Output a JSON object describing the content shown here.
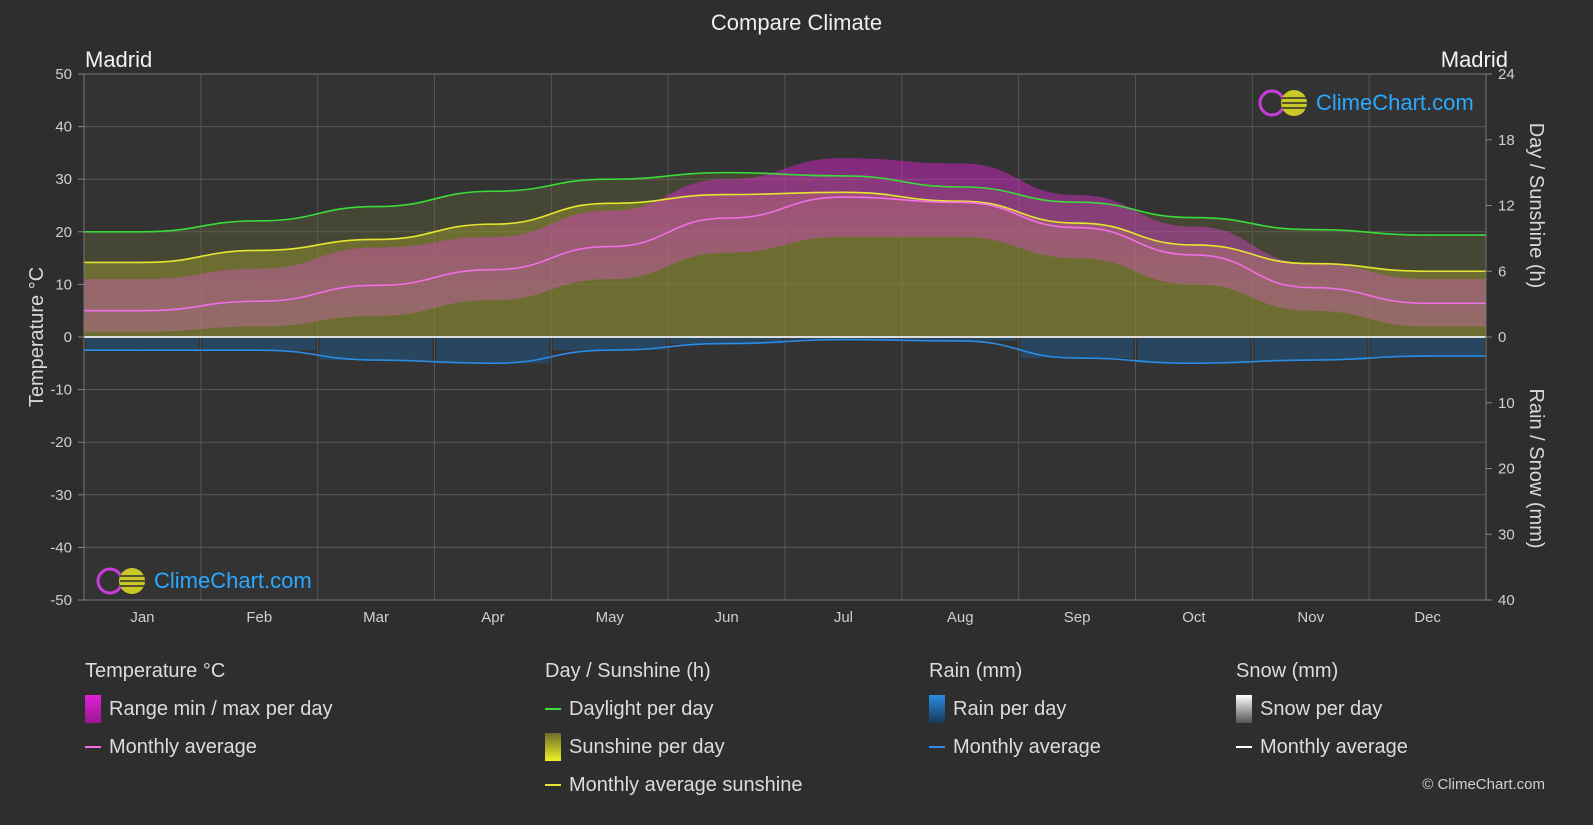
{
  "title": "Compare Climate",
  "location_left": "Madrid",
  "location_right": "Madrid",
  "brand": "ClimeChart.com",
  "copyright": "© ClimeChart.com",
  "colors": {
    "background": "#2e2e2e",
    "daylight": "#3adc3a",
    "sunshine_avg": "#e6e632",
    "temp_avg": "#f06ee6",
    "rain_avg": "#2a8ce6",
    "temp_range": "#d21ec8",
    "sunshine_fill": "#a0a028",
    "rain_fill": "#1e5a8c"
  },
  "axes": {
    "left_title": "Temperature °C",
    "right_top_title": "Day / Sunshine (h)",
    "right_bottom_title": "Rain / Snow (mm)",
    "left_ticks": [
      "50",
      "40",
      "30",
      "20",
      "10",
      "0",
      "-10",
      "-20",
      "-30",
      "-40",
      "-50"
    ],
    "right_top_ticks": [
      "24",
      "18",
      "12",
      "6",
      "0"
    ],
    "right_bottom_ticks": [
      "10",
      "20",
      "30",
      "40"
    ]
  },
  "legend": {
    "temperature": {
      "header": "Temperature °C",
      "range": "Range min / max per day",
      "avg": "Monthly average"
    },
    "sunshine": {
      "header": "Day / Sunshine (h)",
      "daylight": "Daylight per day",
      "sunshine": "Sunshine per day",
      "avg": "Monthly average sunshine"
    },
    "rain": {
      "header": "Rain (mm)",
      "per_day": "Rain per day",
      "avg": "Monthly average"
    },
    "snow": {
      "header": "Snow (mm)",
      "per_day": "Snow per day",
      "avg": "Monthly average"
    }
  },
  "chart_data": {
    "type": "line",
    "categories": [
      "Jan",
      "Feb",
      "Mar",
      "Apr",
      "May",
      "Jun",
      "Jul",
      "Aug",
      "Sep",
      "Oct",
      "Nov",
      "Dec"
    ],
    "temp_ylim": [
      -50,
      50
    ],
    "sun_ylim": [
      0,
      24
    ],
    "rain_ylim": [
      0,
      40
    ],
    "grid": true,
    "series": [
      {
        "name": "Daylight per day",
        "axis": "sun",
        "values": [
          9.6,
          10.6,
          11.9,
          13.3,
          14.4,
          15.0,
          14.7,
          13.7,
          12.3,
          10.9,
          9.8,
          9.3
        ]
      },
      {
        "name": "Monthly average sunshine",
        "axis": "sun",
        "values": [
          6.8,
          7.9,
          8.9,
          10.3,
          12.2,
          13.0,
          13.2,
          12.4,
          10.4,
          8.4,
          6.7,
          6.0
        ]
      },
      {
        "name": "Monthly average",
        "axis": "temp",
        "values": [
          5.0,
          6.8,
          9.8,
          12.8,
          17.2,
          22.6,
          26.6,
          25.6,
          20.8,
          15.6,
          9.4,
          6.4
        ]
      },
      {
        "name": "Monthly average",
        "axis": "rain",
        "values": [
          2.0,
          2.0,
          3.5,
          4.0,
          2.0,
          1.0,
          0.4,
          0.6,
          3.2,
          4.0,
          3.5,
          2.9
        ]
      }
    ],
    "temp_range": {
      "min": [
        1,
        2,
        4,
        7,
        11,
        16,
        19,
        19,
        15,
        10,
        5,
        2
      ],
      "max": [
        11,
        13,
        17,
        19,
        24,
        30,
        34,
        33,
        27,
        21,
        14,
        11
      ]
    },
    "sunshine_per_day": [
      6.8,
      7.9,
      8.9,
      10.3,
      12.2,
      13.0,
      13.2,
      12.4,
      10.4,
      8.4,
      6.7,
      6.0
    ],
    "rain_per_day": [
      2.0,
      2.0,
      3.5,
      4.0,
      2.0,
      1.0,
      0.4,
      0.6,
      3.2,
      4.0,
      3.5,
      2.9
    ]
  }
}
